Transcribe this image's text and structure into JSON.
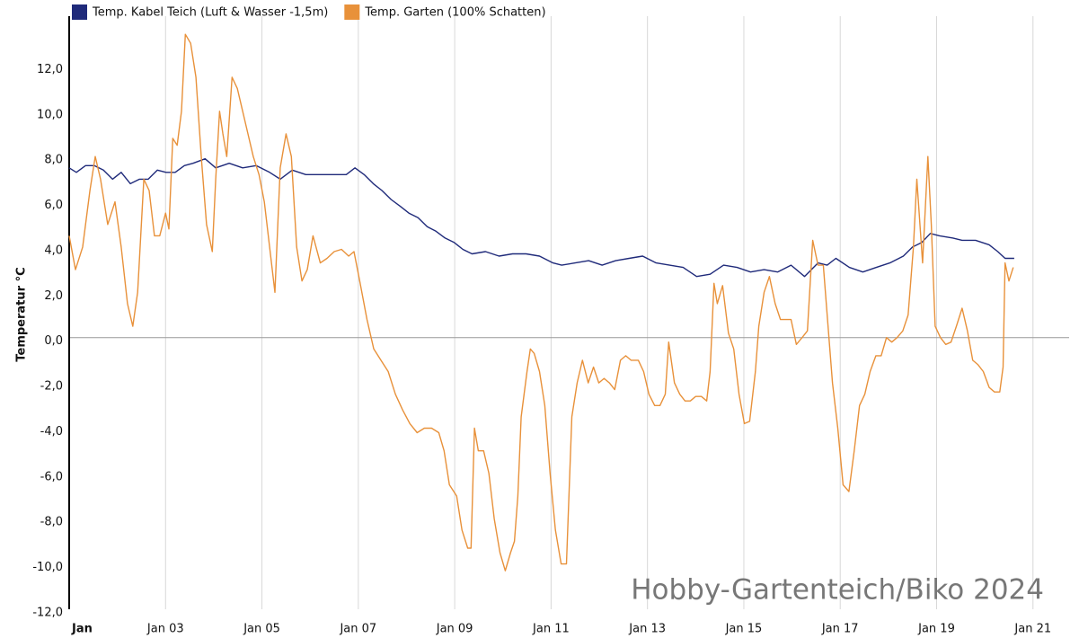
{
  "chart_data": {
    "type": "line",
    "y_label": "Temperatur °C",
    "annotation": "Hobby-Gartenteich/Biko 2024",
    "xlim": [
      1,
      21.75
    ],
    "ylim": [
      -12,
      14.2
    ],
    "xticks": [
      {
        "value": 1,
        "label": "Jan"
      },
      {
        "value": 3,
        "label": "Jan 03"
      },
      {
        "value": 5,
        "label": "Jan 05"
      },
      {
        "value": 7,
        "label": "Jan 07"
      },
      {
        "value": 9,
        "label": "Jan 09"
      },
      {
        "value": 11,
        "label": "Jan 11"
      },
      {
        "value": 13,
        "label": "Jan 13"
      },
      {
        "value": 15,
        "label": "Jan 15"
      },
      {
        "value": 17,
        "label": "Jan 17"
      },
      {
        "value": 19,
        "label": "Jan 19"
      },
      {
        "value": 21,
        "label": "Jan 21"
      }
    ],
    "yticks": [
      {
        "value": -12,
        "label": "-12,0"
      },
      {
        "value": -10,
        "label": "-10,0"
      },
      {
        "value": -8,
        "label": "-8,0"
      },
      {
        "value": -6,
        "label": "-6,0"
      },
      {
        "value": -4,
        "label": "-4,0"
      },
      {
        "value": -2,
        "label": "-2,0"
      },
      {
        "value": 0,
        "label": "0,0"
      },
      {
        "value": 2,
        "label": "2,0"
      },
      {
        "value": 4,
        "label": "4,0"
      },
      {
        "value": 6,
        "label": "6,0"
      },
      {
        "value": 8,
        "label": "8,0"
      },
      {
        "value": 10,
        "label": "10,0"
      },
      {
        "value": 12,
        "label": "12,0"
      }
    ],
    "grid": "x",
    "legend": "top-left",
    "series": [
      {
        "name": "Temp. Kabel Teich (Luft & Wasser -1,5m)",
        "color": "#1f2a7a",
        "x": [
          1.0,
          1.15,
          1.34,
          1.52,
          1.71,
          1.9,
          2.08,
          2.27,
          2.46,
          2.64,
          2.83,
          3.01,
          3.2,
          3.39,
          3.57,
          3.82,
          4.04,
          4.32,
          4.6,
          4.88,
          5.16,
          5.38,
          5.63,
          5.91,
          6.19,
          6.47,
          6.75,
          6.93,
          7.12,
          7.31,
          7.49,
          7.68,
          7.87,
          8.05,
          8.24,
          8.43,
          8.61,
          8.8,
          8.99,
          9.17,
          9.36,
          9.64,
          9.92,
          10.2,
          10.48,
          10.76,
          11.04,
          11.22,
          11.5,
          11.78,
          12.06,
          12.34,
          12.62,
          12.9,
          13.18,
          13.46,
          13.74,
          14.02,
          14.3,
          14.58,
          14.86,
          15.14,
          15.42,
          15.7,
          15.98,
          16.26,
          16.54,
          16.73,
          16.91,
          17.19,
          17.47,
          17.75,
          18.03,
          18.31,
          18.5,
          18.69,
          18.87,
          19.06,
          19.34,
          19.53,
          19.81,
          20.09,
          20.27,
          20.42,
          20.61
        ],
        "values": [
          7.5,
          7.3,
          7.6,
          7.6,
          7.4,
          7.0,
          7.3,
          6.8,
          7.0,
          7.0,
          7.4,
          7.3,
          7.3,
          7.6,
          7.7,
          7.9,
          7.5,
          7.7,
          7.5,
          7.6,
          7.3,
          7.0,
          7.4,
          7.2,
          7.2,
          7.2,
          7.2,
          7.5,
          7.2,
          6.8,
          6.5,
          6.1,
          5.8,
          5.5,
          5.3,
          4.9,
          4.7,
          4.4,
          4.2,
          3.9,
          3.7,
          3.8,
          3.6,
          3.7,
          3.7,
          3.6,
          3.3,
          3.2,
          3.3,
          3.4,
          3.2,
          3.4,
          3.5,
          3.6,
          3.3,
          3.2,
          3.1,
          2.7,
          2.8,
          3.2,
          3.1,
          2.9,
          3.0,
          2.9,
          3.2,
          2.7,
          3.3,
          3.2,
          3.5,
          3.1,
          2.9,
          3.1,
          3.3,
          3.6,
          4.0,
          4.2,
          4.6,
          4.5,
          4.4,
          4.3,
          4.3,
          4.1,
          3.8,
          3.5,
          3.5
        ]
      },
      {
        "name": "Temp. Garten (100% Schatten)",
        "color": "#e8913a",
        "x": [
          1.0,
          1.13,
          1.28,
          1.43,
          1.54,
          1.65,
          1.8,
          1.95,
          2.08,
          2.21,
          2.32,
          2.42,
          2.55,
          2.66,
          2.77,
          2.88,
          3.0,
          3.07,
          3.15,
          3.24,
          3.33,
          3.41,
          3.52,
          3.63,
          3.74,
          3.85,
          3.97,
          4.04,
          4.12,
          4.19,
          4.27,
          4.38,
          4.49,
          4.6,
          4.71,
          4.82,
          4.94,
          5.05,
          5.16,
          5.27,
          5.38,
          5.5,
          5.61,
          5.72,
          5.83,
          5.94,
          6.06,
          6.21,
          6.35,
          6.5,
          6.65,
          6.8,
          6.91,
          7.03,
          7.18,
          7.32,
          7.47,
          7.62,
          7.77,
          7.92,
          8.07,
          8.22,
          8.37,
          8.52,
          8.67,
          8.78,
          8.89,
          9.04,
          9.15,
          9.27,
          9.34,
          9.41,
          9.49,
          9.6,
          9.71,
          9.82,
          9.94,
          10.05,
          10.16,
          10.24,
          10.31,
          10.38,
          10.5,
          10.57,
          10.65,
          10.76,
          10.87,
          10.98,
          11.09,
          11.21,
          11.32,
          11.43,
          11.54,
          11.65,
          11.77,
          11.88,
          11.99,
          12.1,
          12.21,
          12.32,
          12.44,
          12.55,
          12.66,
          12.81,
          12.92,
          13.03,
          13.15,
          13.26,
          13.37,
          13.44,
          13.56,
          13.67,
          13.78,
          13.89,
          14.0,
          14.12,
          14.23,
          14.3,
          14.38,
          14.45,
          14.56,
          14.68,
          14.79,
          14.9,
          15.01,
          15.12,
          15.24,
          15.31,
          15.42,
          15.53,
          15.65,
          15.76,
          15.87,
          15.98,
          16.09,
          16.21,
          16.32,
          16.43,
          16.54,
          16.65,
          16.73,
          16.84,
          16.95,
          17.06,
          17.18,
          17.29,
          17.4,
          17.51,
          17.62,
          17.74,
          17.85,
          17.96,
          18.07,
          18.18,
          18.3,
          18.41,
          18.52,
          18.59,
          18.71,
          18.82,
          18.89,
          18.97,
          19.08,
          19.19,
          19.3,
          19.41,
          19.53,
          19.64,
          19.75,
          19.86,
          19.97,
          20.09,
          20.2,
          20.31,
          20.38,
          20.42,
          20.5,
          20.59
        ],
        "values": [
          4.5,
          3.0,
          4.0,
          6.5,
          8.0,
          7.0,
          5.0,
          6.0,
          4.0,
          1.5,
          0.5,
          2.0,
          7.0,
          6.5,
          4.5,
          4.5,
          5.5,
          4.8,
          8.8,
          8.5,
          10,
          13.4,
          13,
          11.5,
          8,
          5,
          3.8,
          7,
          10,
          9,
          8,
          11.5,
          11,
          10,
          9,
          8,
          7.2,
          6,
          4,
          2,
          7.5,
          9,
          8,
          4,
          2.5,
          3,
          4.5,
          3.3,
          3.5,
          3.8,
          3.9,
          3.6,
          3.8,
          2.5,
          0.8,
          -0.5,
          -1,
          -1.5,
          -2.5,
          -3.2,
          -3.8,
          -4.2,
          -4,
          -4,
          -4.2,
          -5,
          -6.5,
          -7,
          -8.5,
          -9.3,
          -9.3,
          -4,
          -5,
          -5,
          -6,
          -8,
          -9.5,
          -10.3,
          -9.5,
          -9,
          -7,
          -3.5,
          -1.5,
          -0.5,
          -0.7,
          -1.5,
          -3,
          -6,
          -8.5,
          -10,
          -10,
          -3.5,
          -2,
          -1,
          -2,
          -1.3,
          -2,
          -1.8,
          -2,
          -2.3,
          -1,
          -0.8,
          -1,
          -1,
          -1.5,
          -2.5,
          -3,
          -3,
          -2.5,
          -0.2,
          -2,
          -2.5,
          -2.8,
          -2.8,
          -2.6,
          -2.6,
          -2.8,
          -1.5,
          2.4,
          1.5,
          2.3,
          0.2,
          -0.5,
          -2.5,
          -3.8,
          -3.7,
          -1.5,
          0.5,
          2,
          2.7,
          1.5,
          0.8,
          0.8,
          0.8,
          -0.3,
          0,
          0.3,
          4.3,
          3.2,
          3.2,
          1.0,
          -2,
          -4,
          -6.5,
          -6.8,
          -5,
          -3,
          -2.5,
          -1.5,
          -0.8,
          -0.8,
          0,
          -0.2,
          0,
          0.3,
          1,
          4,
          7,
          3.3,
          8,
          5,
          0.5,
          0,
          -0.3,
          -0.2,
          0.5,
          1.3,
          0.3,
          -1,
          -1.2,
          -1.5,
          -2.2,
          -2.4,
          -2.4,
          -1.3,
          3.3,
          2.5,
          3.1
        ]
      }
    ]
  }
}
